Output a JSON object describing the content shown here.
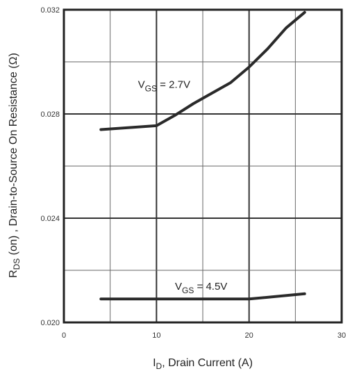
{
  "chart_data": {
    "type": "line",
    "xlim": [
      0,
      30
    ],
    "ylim": [
      0.02,
      0.032
    ],
    "grid": true,
    "x_ticks": [
      "0",
      "10",
      "20",
      "30"
    ],
    "y_ticks": [
      "0.020",
      "0.024",
      "0.028",
      "0.032"
    ],
    "xlabel": {
      "main": "I",
      "sub": "D",
      "rest": ", Drain Current (A)"
    },
    "ylabel": {
      "main": "R",
      "sub": "DS",
      "rest": " (on) , Drain-to-Source On Resistance (Ω)"
    },
    "series": [
      {
        "label_main": "V",
        "label_sub": "GS",
        "label_rest": " = 2.7V",
        "label_at": [
          8.0,
          0.029
        ],
        "x": [
          4,
          6,
          8,
          10,
          12,
          14,
          16,
          18,
          20,
          22,
          24,
          26
        ],
        "y": [
          0.0274,
          0.02745,
          0.0275,
          0.02755,
          0.02795,
          0.0284,
          0.0288,
          0.0292,
          0.0298,
          0.0305,
          0.0313,
          0.0319
        ]
      },
      {
        "label_main": "V",
        "label_sub": "GS",
        "label_rest": " = 4.5V",
        "label_at": [
          12.0,
          0.02125
        ],
        "x": [
          4,
          10,
          15,
          20,
          26
        ],
        "y": [
          0.0209,
          0.0209,
          0.0209,
          0.0209,
          0.0211
        ]
      }
    ]
  }
}
